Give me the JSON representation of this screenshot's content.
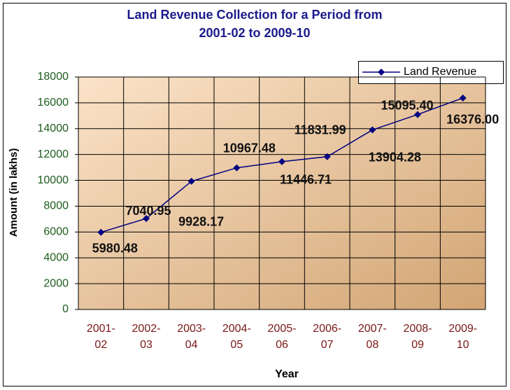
{
  "chart_data": {
    "type": "line",
    "title": "Land Revenue Collection for a Period from 2001-02 to 2009-10",
    "x_label": "Year",
    "y_label": "Amount (in lakhs)",
    "categories": [
      "2001-02",
      "2002-03",
      "2003-04",
      "2004-05",
      "2005-06",
      "2006-07",
      "2007-08",
      "2008-09",
      "2009-10"
    ],
    "series": [
      {
        "name": "Land Revenue",
        "color": "#000080",
        "values": [
          5980.48,
          7040.95,
          9928.17,
          10967.48,
          11446.71,
          11831.99,
          13904.28,
          15095.4,
          16376.0
        ],
        "value_labels": [
          "5980.48",
          "7040.95",
          "9928.17",
          "10967.48",
          "11446.71",
          "11831.99",
          "13904.28",
          "15095.40",
          "16376.00"
        ]
      }
    ],
    "ylim": [
      0,
      18000
    ],
    "yticks": [
      0,
      2000,
      4000,
      6000,
      8000,
      10000,
      12000,
      14000,
      16000,
      18000
    ],
    "grid": true,
    "legend": "top-right"
  }
}
